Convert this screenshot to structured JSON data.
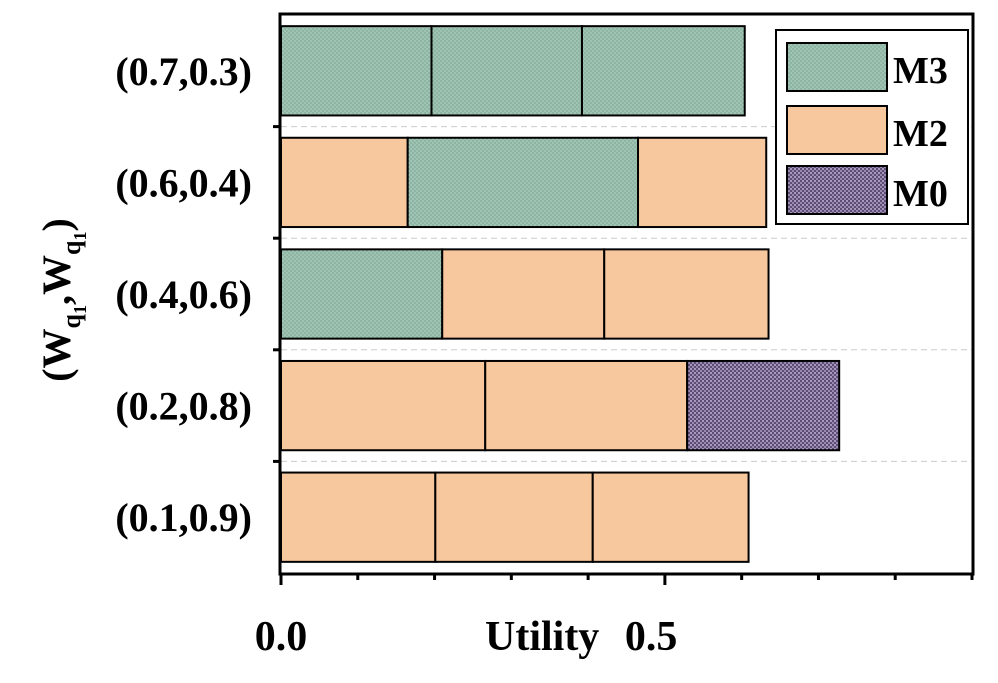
{
  "colors": {
    "M3": "#9fc4b3",
    "M2": "#f7c79d",
    "M0": "#9a87b5",
    "border": "#000000",
    "grid": "#cccccc"
  },
  "chart_data": {
    "type": "bar",
    "orientation": "horizontal",
    "stacked": true,
    "xlabel": "Utility",
    "ylabel_main": "(W",
    "ylabel_sub1": "q",
    "ylabel_subsub1": "1",
    "ylabel_mid": ",W",
    "ylabel_sub2": "q",
    "ylabel_subsub2": "1",
    "ylabel_end": ")",
    "xlim": [
      0,
      0.9
    ],
    "xticks": [
      {
        "value": 0.0,
        "label": "0.0"
      },
      {
        "value": 0.5,
        "label": "0.5"
      }
    ],
    "categories": [
      "(0.7,0.3)",
      "(0.6,0.4)",
      "(0.4,0.6)",
      "(0.2,0.8)",
      "(0.1,0.9)"
    ],
    "segments": [
      [
        {
          "series": "M3",
          "value": 0.196
        },
        {
          "series": "M3",
          "value": 0.196
        },
        {
          "series": "M3",
          "value": 0.212
        }
      ],
      [
        {
          "series": "M2",
          "value": 0.165
        },
        {
          "series": "M3",
          "value": 0.3
        },
        {
          "series": "M2",
          "value": 0.167
        }
      ],
      [
        {
          "series": "M3",
          "value": 0.21
        },
        {
          "series": "M2",
          "value": 0.211
        },
        {
          "series": "M2",
          "value": 0.214
        }
      ],
      [
        {
          "series": "M2",
          "value": 0.266
        },
        {
          "series": "M2",
          "value": 0.263
        },
        {
          "series": "M0",
          "value": 0.198
        }
      ],
      [
        {
          "series": "M2",
          "value": 0.201
        },
        {
          "series": "M2",
          "value": 0.205
        },
        {
          "series": "M2",
          "value": 0.203
        }
      ]
    ],
    "legend": {
      "position": "top-right",
      "entries": [
        "M3",
        "M2",
        "M0"
      ]
    },
    "grid": "horizontal-dashed"
  }
}
